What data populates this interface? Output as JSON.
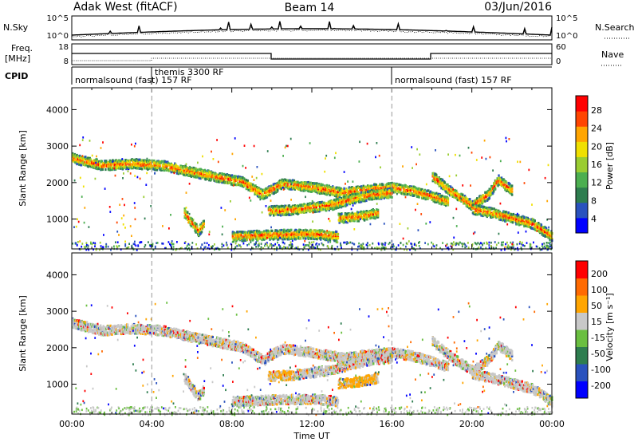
{
  "header": {
    "station": "Adak West (fitACF)",
    "beam": "Beam 14",
    "date": "03/Jun/2016"
  },
  "noise_panel": {
    "left_label": "N.Sky",
    "right_label": "N.Search",
    "left_ticks": [
      "10^5",
      "10^0"
    ],
    "right_ticks": [
      "10^5",
      "10^0"
    ]
  },
  "freq_panel": {
    "left_label_1": "Freq.",
    "left_label_2": "[MHz]",
    "right_label": "Nave",
    "left_ticks": [
      "18",
      "8"
    ],
    "right_ticks": [
      "60",
      "0"
    ]
  },
  "cpid_panel": {
    "label": "CPID",
    "segments": [
      {
        "text": "normalsound (fast) 157 RF",
        "start_hour": 0
      },
      {
        "text": "themis 3300 RF",
        "start_hour": 4
      },
      {
        "text": "normalsound (fast) 157 RF",
        "start_hour": 16
      }
    ]
  },
  "chart_data": [
    {
      "type": "heatmap",
      "name": "power",
      "xlabel": "",
      "ylabel": "Slant Range [km]",
      "xlim": [
        0,
        24
      ],
      "ylim": [
        180,
        4600
      ],
      "yticks": [
        1000,
        2000,
        3000,
        4000
      ],
      "colorbar": {
        "label": "Power [dB]",
        "range": [
          0,
          30
        ],
        "ticks": [
          "28",
          "24",
          "20",
          "16",
          "12",
          "8",
          "4"
        ],
        "colors": [
          "#0000ff",
          "#2a52be",
          "#2e7d4f",
          "#4caf50",
          "#9acd32",
          "#f0e000",
          "#ffa500",
          "#ff4500",
          "#ff0000"
        ]
      },
      "features": [
        {
          "label": "band",
          "x": [
            0.0,
            1.5,
            3.0,
            4.5,
            6.0,
            7.5,
            8.5,
            9.5,
            10.5,
            12.0,
            13.5,
            15.0,
            16.0,
            17.0,
            18.0,
            18.8
          ],
          "y": [
            2700,
            2500,
            2550,
            2500,
            2320,
            2150,
            2050,
            1700,
            2000,
            1900,
            1750,
            1850,
            1900,
            1800,
            1650,
            1500
          ]
        },
        {
          "label": "band",
          "x": [
            9.8,
            11.0,
            12.0,
            13.0,
            14.0,
            15.0,
            16.0
          ],
          "y": [
            1250,
            1280,
            1350,
            1420,
            1580,
            1700,
            1750
          ]
        },
        {
          "label": "band",
          "x": [
            18.0,
            19.0,
            20.0,
            20.8,
            21.3,
            22.0
          ],
          "y": [
            2200,
            1750,
            1400,
            1700,
            2100,
            1800
          ]
        },
        {
          "label": "band",
          "x": [
            20.0,
            21.0,
            22.0,
            23.0,
            24.0
          ],
          "y": [
            1300,
            1200,
            1050,
            900,
            550
          ]
        },
        {
          "label": "band",
          "x": [
            5.6,
            6.0,
            6.3,
            6.6
          ],
          "y": [
            1200,
            900,
            700,
            900
          ]
        },
        {
          "label": "band",
          "x": [
            13.3,
            14.3,
            15.3
          ],
          "y": [
            1050,
            1100,
            1200
          ]
        },
        {
          "label": "band",
          "x": [
            8.0,
            10.0,
            12.0,
            13.3
          ],
          "y": [
            550,
            600,
            620,
            560
          ]
        }
      ]
    },
    {
      "type": "heatmap",
      "name": "velocity",
      "xlabel": "Time UT",
      "ylabel": "Slant Range [km]",
      "xlim": [
        0,
        24
      ],
      "ylim": [
        180,
        4600
      ],
      "yticks": [
        1000,
        2000,
        3000,
        4000
      ],
      "xticks": [
        "00:00",
        "04:00",
        "08:00",
        "12:00",
        "16:00",
        "20:00",
        "00:00"
      ],
      "colorbar": {
        "label": "Velocity [m s⁻¹]",
        "range": [
          -250,
          250
        ],
        "ticks": [
          "200",
          "100",
          "50",
          "15",
          "-15",
          "-50",
          "-100",
          "-200"
        ],
        "colors": [
          "#0000ff",
          "#2a52be",
          "#2e7d4f",
          "#6abf40",
          "#c8c8c8",
          "#ffa500",
          "#ff6a00",
          "#ff0000"
        ]
      },
      "features": [
        {
          "label": "band",
          "x": [
            0.0,
            1.5,
            3.0,
            4.5,
            6.0,
            7.5,
            8.5,
            9.5,
            10.5,
            12.0,
            13.5,
            15.0,
            16.0,
            17.0,
            18.0,
            18.8
          ],
          "y": [
            2700,
            2500,
            2550,
            2500,
            2320,
            2150,
            2050,
            1700,
            2000,
            1900,
            1750,
            1850,
            1900,
            1800,
            1650,
            1500
          ]
        },
        {
          "label": "band",
          "x": [
            9.8,
            11.0,
            12.0,
            13.0,
            14.0,
            15.0,
            16.0
          ],
          "y": [
            1250,
            1280,
            1350,
            1420,
            1580,
            1700,
            1750
          ]
        },
        {
          "label": "band",
          "x": [
            18.0,
            19.0,
            20.0,
            20.8,
            21.3,
            22.0
          ],
          "y": [
            2200,
            1750,
            1400,
            1700,
            2100,
            1800
          ]
        },
        {
          "label": "band",
          "x": [
            20.0,
            21.0,
            22.0,
            23.0,
            24.0
          ],
          "y": [
            1300,
            1200,
            1050,
            900,
            550
          ]
        },
        {
          "label": "band",
          "x": [
            5.6,
            6.0,
            6.3,
            6.6
          ],
          "y": [
            1200,
            900,
            700,
            900
          ]
        },
        {
          "label": "band",
          "x": [
            13.3,
            14.3,
            15.3
          ],
          "y": [
            1050,
            1100,
            1200
          ]
        },
        {
          "label": "band",
          "x": [
            8.0,
            10.0,
            12.0,
            13.3
          ],
          "y": [
            550,
            600,
            620,
            560
          ]
        }
      ]
    }
  ]
}
